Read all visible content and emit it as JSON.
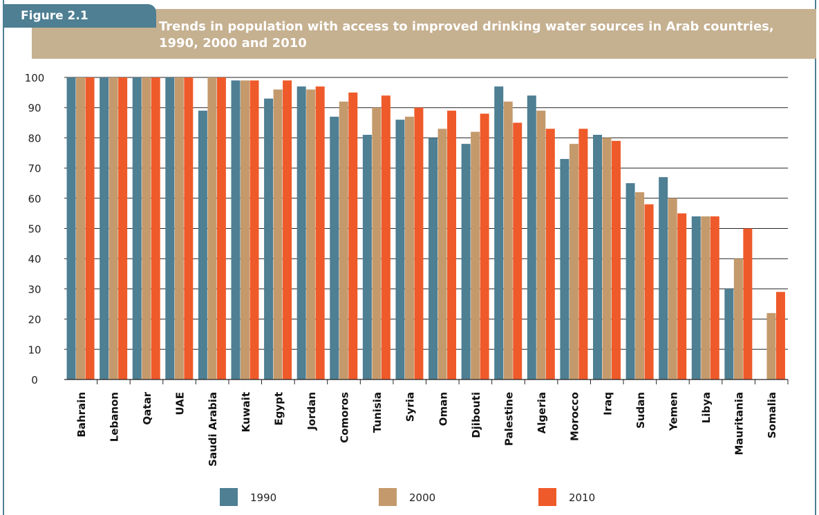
{
  "figure_label": "Figure 2.1",
  "title": "Trends in population with access to improved drinking water sources in Arab countries, 1990, 2000 and 2010",
  "colors": {
    "1990": "#4e7f93",
    "2000": "#c49a6c",
    "2010": "#ef5a2a",
    "accent": "#4e7f93",
    "banner": "#c5b090"
  },
  "chart_data": {
    "type": "bar",
    "title": "Trends in population with access to improved drinking water sources in Arab countries, 1990, 2000 and 2010",
    "xlabel": "",
    "ylabel": "",
    "ylim": [
      0,
      100
    ],
    "yticks": [
      0,
      10,
      20,
      30,
      40,
      50,
      60,
      70,
      80,
      90,
      100
    ],
    "grid": true,
    "legend_position": "bottom",
    "categories": [
      "Bahrain",
      "Lebanon",
      "Qatar",
      "UAE",
      "Saudi Arabia",
      "Kuwait",
      "Egypt",
      "Jordan",
      "Comoros",
      "Tunisia",
      "Syria",
      "Oman",
      "Djibouti",
      "Palestine",
      "Algeria",
      "Morocco",
      "Iraq",
      "Sudan",
      "Yemen",
      "Libya",
      "Mauritania",
      "Somalia"
    ],
    "series": [
      {
        "name": "1990",
        "values": [
          100,
          100,
          100,
          100,
          89,
          99,
          93,
          97,
          87,
          81,
          86,
          80,
          78,
          97,
          94,
          73,
          81,
          65,
          67,
          54,
          30,
          null
        ]
      },
      {
        "name": "2000",
        "values": [
          100,
          100,
          100,
          100,
          100,
          99,
          96,
          96,
          92,
          90,
          87,
          83,
          82,
          92,
          89,
          78,
          80,
          62,
          60,
          54,
          40,
          22
        ]
      },
      {
        "name": "2010",
        "values": [
          100,
          100,
          100,
          100,
          100,
          99,
          99,
          97,
          95,
          94,
          90,
          89,
          88,
          85,
          83,
          83,
          79,
          58,
          55,
          54,
          50,
          29
        ]
      }
    ]
  }
}
